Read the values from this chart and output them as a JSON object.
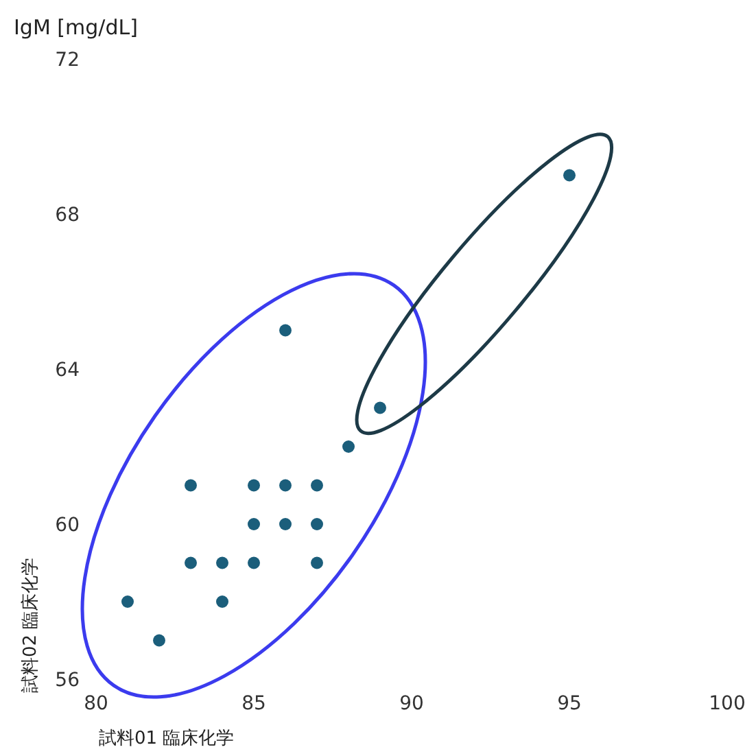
{
  "chart_data": {
    "type": "scatter",
    "title": "IgM [mg/dL]",
    "xlabel": "試料01 臨床化学",
    "ylabel": "試料02 臨床化学",
    "xlim": [
      80,
      100
    ],
    "xticks": [
      80,
      85,
      90,
      95,
      100
    ],
    "ylim": [
      56,
      72
    ],
    "yticks": [
      56,
      60,
      64,
      68,
      72
    ],
    "grid": false,
    "marker": "circle",
    "series": [
      {
        "color": "#1b5e7b",
        "x": [
          95,
          86,
          89,
          88,
          83,
          85,
          86,
          87,
          85,
          86,
          87,
          83,
          84,
          85,
          87,
          84,
          81,
          82
        ],
        "values": [
          69,
          65,
          63,
          62,
          61,
          61,
          61,
          61,
          60,
          60,
          60,
          59,
          59,
          59,
          59,
          58,
          58,
          57
        ]
      }
    ]
  }
}
